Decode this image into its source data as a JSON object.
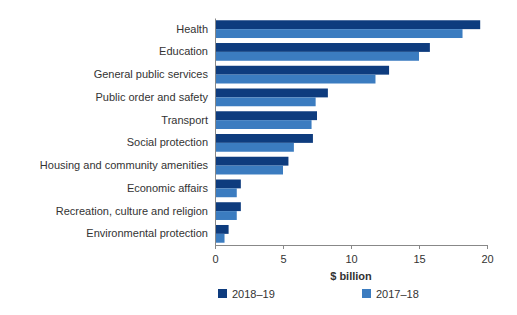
{
  "chart_data": {
    "type": "bar",
    "orientation": "horizontal",
    "categories": [
      "Health",
      "Education",
      "General public services",
      "Public order and safety",
      "Transport",
      "Social protection",
      "Housing and community amenities",
      "Economic affairs",
      "Recreation, culture and religion",
      "Environmental protection"
    ],
    "series": [
      {
        "name": "2018–19",
        "color": "#0e3c7e",
        "values": [
          19.5,
          15.8,
          12.8,
          8.3,
          7.5,
          7.2,
          5.4,
          1.9,
          1.9,
          1.0
        ]
      },
      {
        "name": "2017–18",
        "color": "#3b7cc0",
        "values": [
          18.2,
          15.0,
          11.8,
          7.4,
          7.1,
          5.8,
          5.0,
          1.6,
          1.6,
          0.7
        ]
      }
    ],
    "xlabel": "$ billion",
    "xlim": [
      0,
      20
    ],
    "xticks": [
      0,
      5,
      10,
      15,
      20
    ],
    "grid": false,
    "legend": "bottom"
  }
}
